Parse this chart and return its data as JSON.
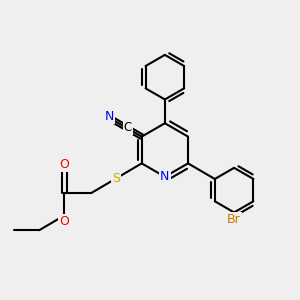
{
  "bg_color": "#efefef",
  "bond_color": "#000000",
  "bond_width": 1.5,
  "atom_colors": {
    "N_pyridine": "#0000ff",
    "N_cyano": "#0000ff",
    "S": "#ccaa00",
    "O": "#ff0000",
    "Br": "#cc7700",
    "C": "#000000"
  }
}
